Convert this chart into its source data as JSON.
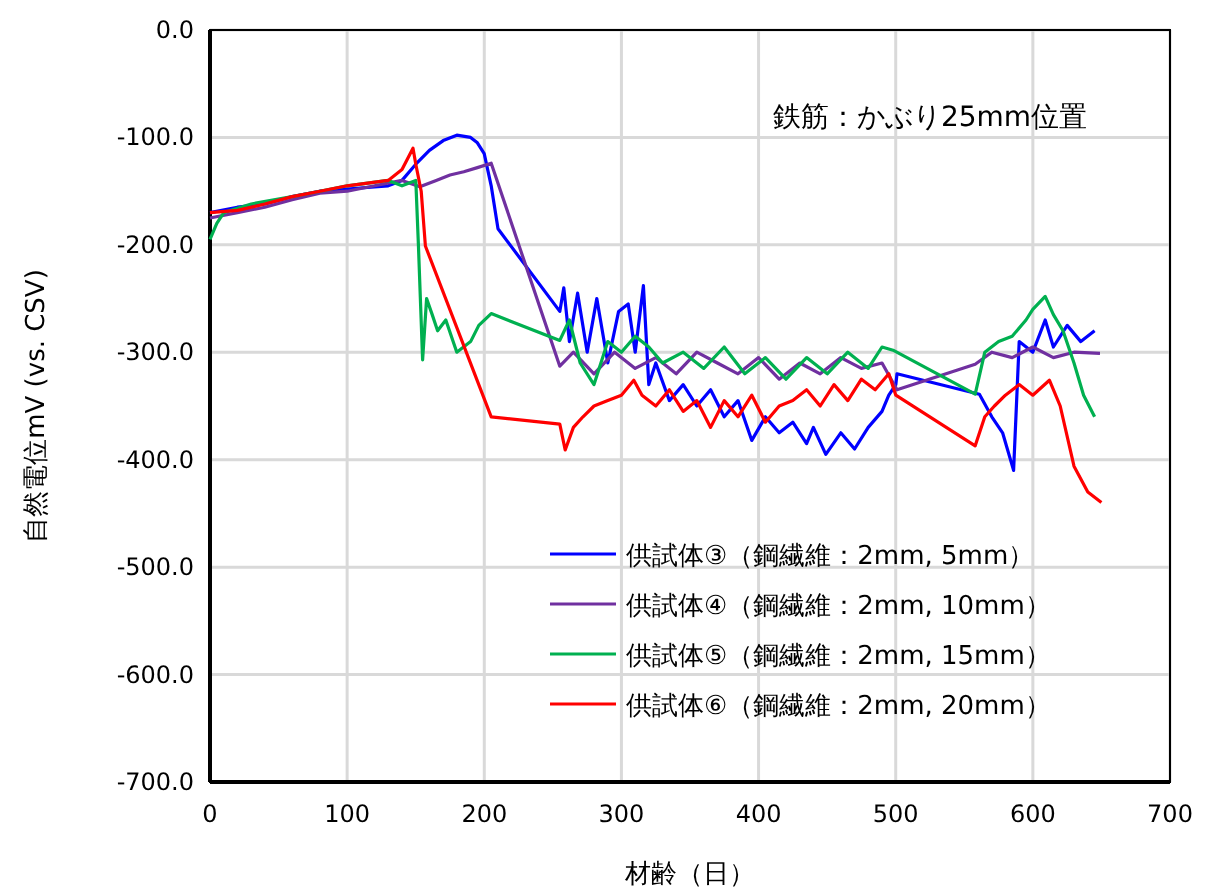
{
  "chart_data": {
    "type": "line",
    "xlabel": "材齢（日）",
    "ylabel": "自然電位mV (vs. CSV)",
    "annotations": [
      "鉄筋：かぶり25mm位置"
    ],
    "xlim": [
      0,
      700
    ],
    "xticks": [
      0,
      100,
      200,
      300,
      400,
      500,
      600,
      700
    ],
    "ylim": [
      -700,
      0
    ],
    "yticks": [
      {
        "value": 0,
        "label": "0.0"
      },
      {
        "value": -100,
        "label": "-100.0"
      },
      {
        "value": -200,
        "label": "-200.0"
      },
      {
        "value": -300,
        "label": "-300.0"
      },
      {
        "value": -400,
        "label": "-400.0"
      },
      {
        "value": -500,
        "label": "-500.0"
      },
      {
        "value": -600,
        "label": "-600.0"
      },
      {
        "value": -700,
        "label": "-700.0"
      }
    ],
    "grid": true,
    "legend": "bottom right",
    "marker": "none",
    "line_style": "solid",
    "series": [
      {
        "name": "供試体③（鋼繊維：2mm, 5mm）",
        "color": "#0000ff",
        "x": [
          0,
          20,
          40,
          60,
          80,
          100,
          130,
          140,
          150,
          160,
          170,
          180,
          190,
          195,
          200,
          205,
          210,
          255,
          258,
          262,
          268,
          275,
          282,
          290,
          298,
          305,
          310,
          316,
          320,
          325,
          335,
          345,
          355,
          365,
          375,
          385,
          395,
          405,
          415,
          425,
          435,
          440,
          449,
          460,
          470,
          480,
          490,
          495,
          500,
          501,
          561,
          570,
          578,
          586,
          590,
          600,
          609,
          615,
          625,
          635,
          645
        ],
        "values": [
          -170,
          -165,
          -162,
          -155,
          -150,
          -148,
          -145,
          -140,
          -125,
          -112,
          -103,
          -98,
          -100,
          -105,
          -115,
          -145,
          -185,
          -262,
          -240,
          -290,
          -245,
          -300,
          -250,
          -310,
          -262,
          -255,
          -300,
          -238,
          -330,
          -310,
          -345,
          -330,
          -350,
          -335,
          -360,
          -345,
          -382,
          -360,
          -375,
          -365,
          -385,
          -370,
          -395,
          -375,
          -390,
          -370,
          -355,
          -340,
          -330,
          -320,
          -339,
          -360,
          -375,
          -410,
          -290,
          -300,
          -270,
          -295,
          -275,
          -290,
          -280
        ]
      },
      {
        "name": "供試体④（鋼繊維：2mm, 10mm）",
        "color": "#7030a0",
        "x": [
          0,
          20,
          40,
          60,
          80,
          100,
          120,
          140,
          153,
          165,
          175,
          185,
          195,
          205,
          255,
          265,
          280,
          295,
          310,
          325,
          340,
          355,
          370,
          385,
          400,
          415,
          430,
          445,
          460,
          475,
          490,
          501,
          558,
          570,
          585,
          600,
          615,
          630,
          649
        ],
        "values": [
          -175,
          -170,
          -165,
          -158,
          -152,
          -150,
          -145,
          -140,
          -146,
          -140,
          -135,
          -132,
          -128,
          -124,
          -313,
          -300,
          -320,
          -300,
          -315,
          -305,
          -320,
          -300,
          -310,
          -320,
          -305,
          -325,
          -310,
          -320,
          -305,
          -315,
          -310,
          -335,
          -311,
          -300,
          -305,
          -295,
          -305,
          -300,
          -301
        ]
      },
      {
        "name": "供試体⑤（鋼繊維：2mm, 15mm）",
        "color": "#00b050",
        "x": [
          0,
          5,
          10,
          30,
          60,
          80,
          100,
          130,
          140,
          150,
          152,
          155,
          158,
          162,
          166,
          172,
          180,
          190,
          196,
          205,
          255,
          262,
          270,
          280,
          290,
          300,
          310,
          320,
          330,
          345,
          360,
          375,
          390,
          405,
          420,
          435,
          450,
          465,
          480,
          490,
          498,
          558,
          565,
          575,
          585,
          595,
          600,
          609,
          615,
          622,
          630,
          637,
          645
        ],
        "values": [
          -195,
          -180,
          -170,
          -162,
          -155,
          -150,
          -145,
          -140,
          -145,
          -140,
          -200,
          -307,
          -250,
          -265,
          -280,
          -270,
          -300,
          -290,
          -275,
          -264,
          -289,
          -270,
          -310,
          -330,
          -290,
          -300,
          -285,
          -295,
          -310,
          -300,
          -315,
          -295,
          -320,
          -305,
          -325,
          -305,
          -320,
          -300,
          -315,
          -295,
          -298,
          -339,
          -300,
          -290,
          -285,
          -270,
          -260,
          -248,
          -265,
          -280,
          -310,
          -340,
          -360
        ]
      },
      {
        "name": "供試体⑥（鋼繊維：2mm, 20mm）",
        "color": "#ff0000",
        "x": [
          0,
          20,
          40,
          60,
          80,
          100,
          130,
          140,
          148,
          150,
          154,
          157,
          205,
          255,
          259,
          265,
          272,
          280,
          290,
          300,
          309,
          315,
          325,
          335,
          345,
          355,
          365,
          375,
          385,
          395,
          405,
          415,
          425,
          435,
          445,
          455,
          465,
          475,
          485,
          495,
          500,
          558,
          565,
          572,
          580,
          590,
          600,
          612,
          620,
          630,
          640,
          650
        ],
        "values": [
          -170,
          -168,
          -162,
          -155,
          -150,
          -145,
          -140,
          -130,
          -110,
          -125,
          -150,
          -201,
          -360,
          -367,
          -391,
          -370,
          -360,
          -350,
          -345,
          -340,
          -326,
          -340,
          -350,
          -335,
          -355,
          -345,
          -370,
          -345,
          -360,
          -340,
          -365,
          -350,
          -345,
          -335,
          -350,
          -330,
          -345,
          -325,
          -335,
          -320,
          -340,
          -387,
          -360,
          -350,
          -340,
          -330,
          -340,
          -326,
          -350,
          -406,
          -430,
          -440
        ]
      }
    ]
  }
}
